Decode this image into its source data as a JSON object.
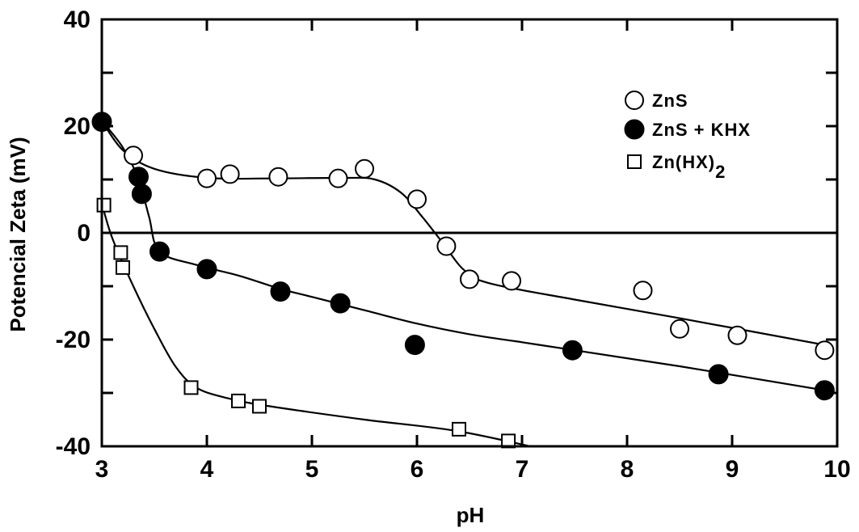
{
  "chart_data": {
    "type": "scatter",
    "xlabel": "pH",
    "ylabel": "Potencial Zeta (mV)",
    "xlim": [
      3,
      10
    ],
    "ylim": [
      -40,
      40
    ],
    "x_ticks": [
      "3",
      "4",
      "5",
      "6",
      "7",
      "8",
      "9",
      "10"
    ],
    "y_ticks": [
      {
        "value": 40,
        "label": "40"
      },
      {
        "value": 20,
        "label": "20"
      },
      {
        "value": 0,
        "label": "0"
      },
      {
        "value": -20,
        "label": "-20"
      },
      {
        "value": -40,
        "label": "-40"
      }
    ],
    "grid": false,
    "legend": "top-right",
    "series": [
      {
        "name": "ZnS",
        "marker": "open-circle",
        "points": [
          [
            3.3,
            14.5
          ],
          [
            4.0,
            10.2
          ],
          [
            4.22,
            11.0
          ],
          [
            4.68,
            10.5
          ],
          [
            5.25,
            10.2
          ],
          [
            5.5,
            12.0
          ],
          [
            6.0,
            6.3
          ],
          [
            6.28,
            -2.5
          ],
          [
            6.5,
            -8.7
          ],
          [
            6.9,
            -9.0
          ],
          [
            8.15,
            -10.8
          ],
          [
            8.5,
            -18.0
          ],
          [
            9.05,
            -19.2
          ],
          [
            9.88,
            -22.0
          ]
        ],
        "curve": [
          [
            3.0,
            21.0
          ],
          [
            3.2,
            15.5
          ],
          [
            3.5,
            12.0
          ],
          [
            4.0,
            10.3
          ],
          [
            4.6,
            10.2
          ],
          [
            5.3,
            10.3
          ],
          [
            5.6,
            10.0
          ],
          [
            5.85,
            7.5
          ],
          [
            6.05,
            3.0
          ],
          [
            6.25,
            -2.0
          ],
          [
            6.45,
            -7.0
          ],
          [
            6.7,
            -9.5
          ],
          [
            7.5,
            -12.5
          ],
          [
            8.5,
            -16.0
          ],
          [
            9.88,
            -21.0
          ]
        ]
      },
      {
        "name": "ZnS + KHX",
        "marker": "filled-circle",
        "points": [
          [
            3.0,
            20.8
          ],
          [
            3.35,
            10.5
          ],
          [
            3.38,
            7.3
          ],
          [
            3.55,
            -3.5
          ],
          [
            4.0,
            -6.8
          ],
          [
            4.7,
            -11.0
          ],
          [
            5.27,
            -13.2
          ],
          [
            5.98,
            -21.0
          ],
          [
            7.48,
            -22.0
          ],
          [
            8.87,
            -26.5
          ],
          [
            9.88,
            -29.5
          ]
        ],
        "curve": [
          [
            3.0,
            21.0
          ],
          [
            3.2,
            16.0
          ],
          [
            3.35,
            10.0
          ],
          [
            3.45,
            3.0
          ],
          [
            3.55,
            -3.5
          ],
          [
            3.9,
            -6.0
          ],
          [
            4.3,
            -8.0
          ],
          [
            4.7,
            -10.5
          ],
          [
            5.0,
            -12.0
          ],
          [
            5.5,
            -14.5
          ],
          [
            6.0,
            -17.0
          ],
          [
            6.5,
            -19.0
          ],
          [
            7.0,
            -20.5
          ],
          [
            7.5,
            -22.0
          ],
          [
            8.5,
            -25.0
          ],
          [
            9.88,
            -29.5
          ]
        ]
      },
      {
        "name": "Zn(HX)",
        "name_subscript": "2",
        "marker": "open-square",
        "points": [
          [
            3.02,
            5.2
          ],
          [
            3.18,
            -3.7
          ],
          [
            3.2,
            -6.5
          ],
          [
            3.85,
            -29.0
          ],
          [
            4.3,
            -31.5
          ],
          [
            4.5,
            -32.5
          ],
          [
            6.4,
            -36.8
          ],
          [
            6.87,
            -39.0
          ]
        ],
        "curve": [
          [
            3.0,
            5.5
          ],
          [
            3.1,
            -1.0
          ],
          [
            3.3,
            -10.0
          ],
          [
            3.5,
            -18.0
          ],
          [
            3.7,
            -25.0
          ],
          [
            3.9,
            -29.0
          ],
          [
            4.2,
            -31.0
          ],
          [
            4.6,
            -32.5
          ],
          [
            5.5,
            -35.0
          ],
          [
            6.4,
            -37.2
          ],
          [
            7.3,
            -41.0
          ]
        ]
      }
    ]
  }
}
